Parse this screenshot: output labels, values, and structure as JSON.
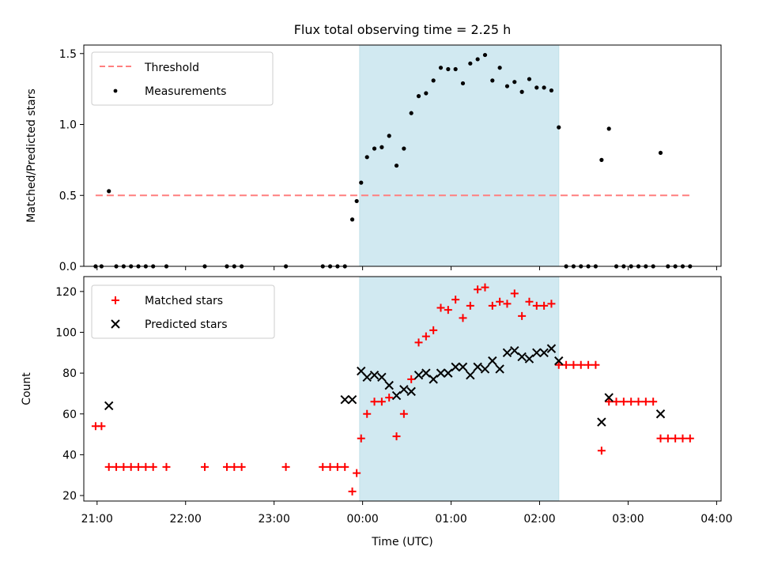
{
  "figure": {
    "title": "Flux total observing time = 2.25 h"
  },
  "colors": {
    "threshold": "#ff7f7f",
    "measurements": "#000000",
    "matched": "#ff0000",
    "predicted": "#000000",
    "observing_span": "#add8e6"
  },
  "chart_data": [
    {
      "type": "scatter",
      "title": "Flux total observing time = 2.25 h",
      "xlabel": "",
      "ylabel": "Matched/Predicted stars",
      "xlim": [
        "20:51",
        "04:03"
      ],
      "ylim": [
        0,
        1.56
      ],
      "yticks": [
        0.0,
        0.5,
        1.0,
        1.5
      ],
      "ytick_labels": [
        "0.0",
        "0.5",
        "1.0",
        "1.5"
      ],
      "x_unit": "time (UTC)",
      "highlight_span": [
        "23:58",
        "02:13"
      ],
      "legend": {
        "position": "top-left",
        "entries": [
          "Threshold",
          "Measurements"
        ]
      },
      "series": [
        {
          "name": "Threshold",
          "kind": "dashed-line",
          "x": [
            "20:59",
            "03:44"
          ],
          "y": [
            0.5,
            0.5
          ]
        },
        {
          "name": "Measurements",
          "kind": "points",
          "x": [
            "20:59",
            "21:03",
            "21:08",
            "21:13",
            "21:18",
            "21:23",
            "21:28",
            "21:33",
            "21:38",
            "21:47",
            "22:13",
            "22:28",
            "22:33",
            "22:38",
            "23:08",
            "23:33",
            "23:38",
            "23:43",
            "23:48",
            "23:53",
            "23:56",
            "23:59",
            "00:03",
            "00:08",
            "00:13",
            "00:18",
            "00:23",
            "00:28",
            "00:33",
            "00:38",
            "00:43",
            "00:48",
            "00:53",
            "00:58",
            "01:03",
            "01:08",
            "01:13",
            "01:18",
            "01:23",
            "01:28",
            "01:33",
            "01:38",
            "01:43",
            "01:48",
            "01:53",
            "01:58",
            "02:03",
            "02:08",
            "02:13",
            "02:18",
            "02:23",
            "02:28",
            "02:33",
            "02:38",
            "02:42",
            "02:47",
            "02:52",
            "02:57",
            "03:02",
            "03:07",
            "03:12",
            "03:17",
            "03:22",
            "03:27",
            "03:32",
            "03:37",
            "03:42"
          ],
          "y": [
            0.0,
            0.0,
            0.53,
            0.0,
            0.0,
            0.0,
            0.0,
            0.0,
            0.0,
            0.0,
            0.0,
            0.0,
            0.0,
            0.0,
            0.0,
            0.0,
            0.0,
            0.0,
            0.0,
            0.33,
            0.46,
            0.59,
            0.77,
            0.83,
            0.84,
            0.92,
            0.71,
            0.83,
            1.08,
            1.2,
            1.22,
            1.31,
            1.4,
            1.39,
            1.39,
            1.29,
            1.43,
            1.46,
            1.49,
            1.31,
            1.4,
            1.27,
            1.3,
            1.23,
            1.32,
            1.26,
            1.26,
            1.24,
            0.98,
            0.0,
            0.0,
            0.0,
            0.0,
            0.0,
            0.75,
            0.97,
            0.0,
            0.0,
            0.0,
            0.0,
            0.0,
            0.0,
            0.8,
            0.0,
            0.0,
            0.0,
            0.0
          ]
        }
      ]
    },
    {
      "type": "scatter",
      "title": "",
      "xlabel": "Time (UTC)",
      "ylabel": "Count",
      "xlim": [
        "20:51",
        "04:03"
      ],
      "ylim": [
        17.3,
        127.3
      ],
      "yticks": [
        20,
        40,
        60,
        80,
        100,
        120
      ],
      "ytick_labels": [
        "20",
        "40",
        "60",
        "80",
        "100",
        "120"
      ],
      "xticks": [
        "21:00",
        "22:00",
        "23:00",
        "00:00",
        "01:00",
        "02:00",
        "03:00",
        "04:00"
      ],
      "xtick_labels": [
        "21:00",
        "22:00",
        "23:00",
        "00:00",
        "01:00",
        "02:00",
        "03:00",
        "04:00"
      ],
      "highlight_span": [
        "23:58",
        "02:13"
      ],
      "legend": {
        "position": "top-left",
        "entries": [
          "Matched stars",
          "Predicted stars"
        ]
      },
      "series": [
        {
          "name": "Matched stars",
          "marker": "+",
          "x": [
            "20:59",
            "21:03",
            "21:08",
            "21:13",
            "21:18",
            "21:23",
            "21:28",
            "21:33",
            "21:38",
            "21:47",
            "22:13",
            "22:28",
            "22:33",
            "22:38",
            "23:08",
            "23:33",
            "23:38",
            "23:43",
            "23:48",
            "23:53",
            "23:56",
            "23:59",
            "00:03",
            "00:08",
            "00:13",
            "00:18",
            "00:23",
            "00:28",
            "00:33",
            "00:38",
            "00:43",
            "00:48",
            "00:53",
            "00:58",
            "01:03",
            "01:08",
            "01:13",
            "01:18",
            "01:23",
            "01:28",
            "01:33",
            "01:38",
            "01:43",
            "01:48",
            "01:53",
            "01:58",
            "02:03",
            "02:08",
            "02:13",
            "02:18",
            "02:23",
            "02:28",
            "02:33",
            "02:38",
            "02:42",
            "02:47",
            "02:52",
            "02:57",
            "03:02",
            "03:07",
            "03:12",
            "03:17",
            "03:22",
            "03:27",
            "03:32",
            "03:37",
            "03:42"
          ],
          "y": [
            54,
            54,
            34,
            34,
            34,
            34,
            34,
            34,
            34,
            34,
            34,
            34,
            34,
            34,
            34,
            34,
            34,
            34,
            34,
            22,
            31,
            48,
            60,
            66,
            66,
            68,
            49,
            60,
            77,
            95,
            98,
            101,
            112,
            111,
            116,
            107,
            113,
            121,
            122,
            113,
            115,
            114,
            119,
            108,
            115,
            113,
            113,
            114,
            84,
            84,
            84,
            84,
            84,
            84,
            42,
            66,
            66,
            66,
            66,
            66,
            66,
            66,
            48,
            48,
            48,
            48,
            48
          ]
        },
        {
          "name": "Predicted stars",
          "marker": "x",
          "x": [
            "21:08",
            "23:48",
            "23:53",
            "23:59",
            "00:03",
            "00:08",
            "00:13",
            "00:18",
            "00:23",
            "00:28",
            "00:33",
            "00:38",
            "00:43",
            "00:48",
            "00:53",
            "00:58",
            "01:03",
            "01:08",
            "01:13",
            "01:18",
            "01:23",
            "01:28",
            "01:33",
            "01:38",
            "01:43",
            "01:48",
            "01:53",
            "01:58",
            "02:03",
            "02:08",
            "02:13",
            "02:42",
            "02:47",
            "03:22"
          ],
          "y": [
            64,
            67,
            67,
            81,
            78,
            79,
            78,
            74,
            69,
            72,
            71,
            79,
            80,
            77,
            80,
            80,
            83,
            83,
            79,
            83,
            82,
            86,
            82,
            90,
            91,
            88,
            87,
            90,
            90,
            92,
            86,
            56,
            68,
            60
          ]
        }
      ]
    }
  ]
}
